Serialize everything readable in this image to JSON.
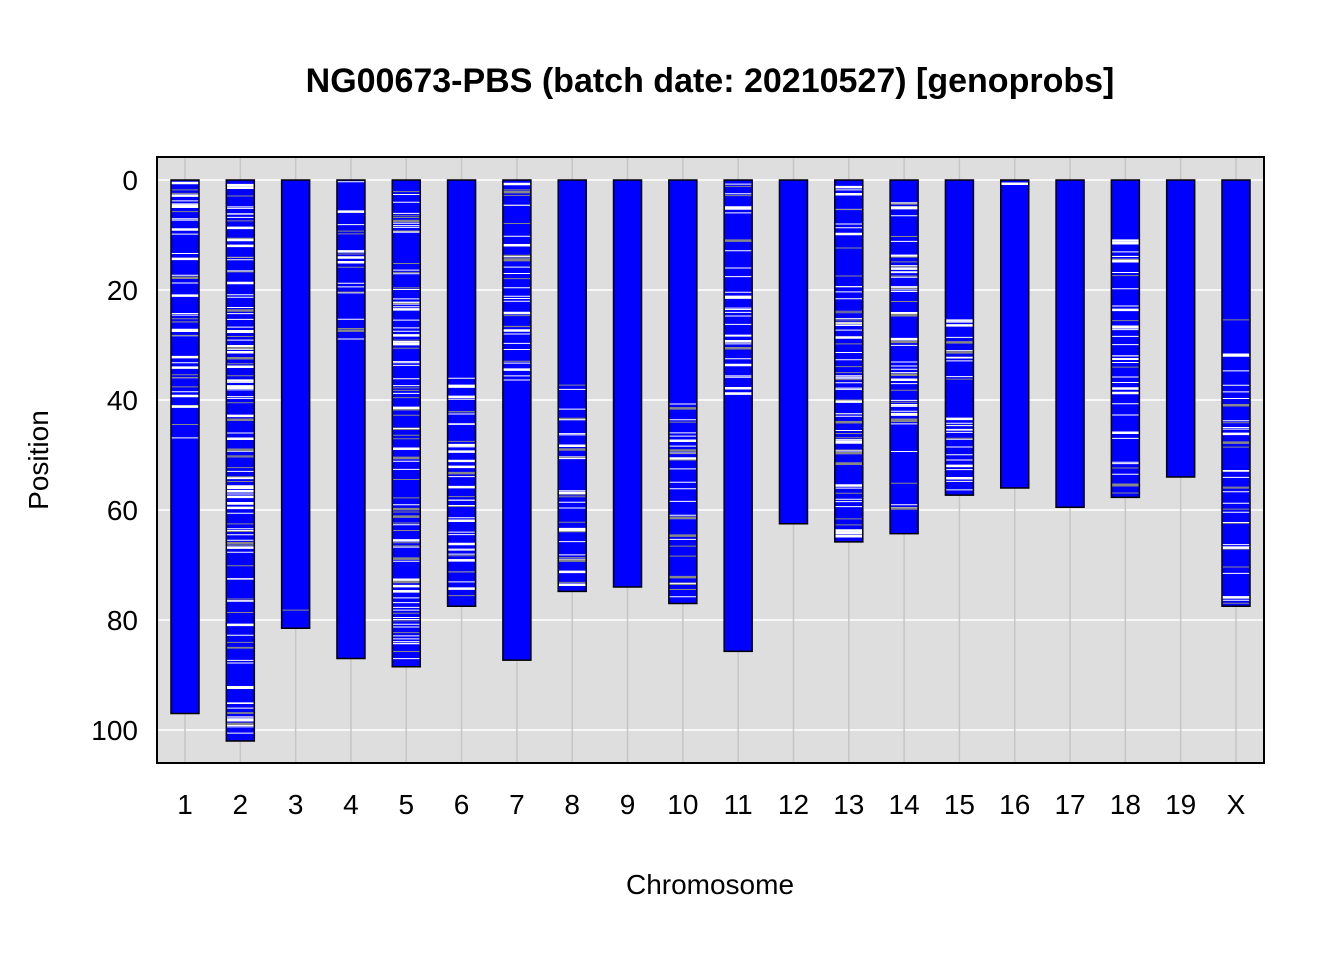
{
  "chart_data": {
    "type": "genotype-chromosome-plot",
    "title": "NG00673-PBS (batch date: 20210527) [genoprobs]",
    "xlabel": "Chromosome",
    "ylabel": "Position",
    "ylim": [
      106,
      -4
    ],
    "y_ticks": [
      "0",
      "20",
      "40",
      "60",
      "80",
      "100"
    ],
    "y_tick_values": [
      0,
      20,
      40,
      60,
      80,
      100
    ],
    "grid": true,
    "colors": {
      "chromosome_fill": "#0000ff",
      "het_marker": "#ffffff",
      "missing_marker": "#888888",
      "panel_background": "#dedede",
      "gridline": "#ffffff",
      "vertical_gridline": "#c6c6c6"
    },
    "chromosomes": [
      {
        "label": "1",
        "length": 97
      },
      {
        "label": "2",
        "length": 102
      },
      {
        "label": "3",
        "length": 81.5
      },
      {
        "label": "4",
        "length": 87
      },
      {
        "label": "5",
        "length": 88.5
      },
      {
        "label": "6",
        "length": 77.5
      },
      {
        "label": "7",
        "length": 87.3
      },
      {
        "label": "8",
        "length": 74.8
      },
      {
        "label": "9",
        "length": 74
      },
      {
        "label": "10",
        "length": 77
      },
      {
        "label": "11",
        "length": 85.7
      },
      {
        "label": "12",
        "length": 62.5
      },
      {
        "label": "13",
        "length": 65.8
      },
      {
        "label": "14",
        "length": 64.3
      },
      {
        "label": "15",
        "length": 57.3
      },
      {
        "label": "16",
        "length": 56
      },
      {
        "label": "17",
        "length": 59.5
      },
      {
        "label": "18",
        "length": 57.7
      },
      {
        "label": "19",
        "length": 54
      },
      {
        "label": "X",
        "length": 77.5
      }
    ],
    "marked_regions": [
      {
        "label": "1",
        "start": 0,
        "end": 47,
        "density": 0.8
      },
      {
        "label": "2",
        "start": 0,
        "end": 102,
        "density": 1.0
      },
      {
        "label": "3",
        "start": 76,
        "end": 81,
        "density": 0.2
      },
      {
        "label": "4",
        "start": 0,
        "end": 29,
        "density": 0.6
      },
      {
        "label": "5",
        "start": 0,
        "end": 88,
        "density": 1.0
      },
      {
        "label": "6",
        "start": 34,
        "end": 77,
        "density": 0.9
      },
      {
        "label": "7",
        "start": 0,
        "end": 37,
        "density": 0.8
      },
      {
        "label": "8",
        "start": 35,
        "end": 74,
        "density": 0.8
      },
      {
        "label": "10",
        "start": 40,
        "end": 76,
        "density": 0.8
      },
      {
        "label": "11",
        "start": 0,
        "end": 39,
        "density": 0.8
      },
      {
        "label": "13",
        "start": 0,
        "end": 65,
        "density": 1.0
      },
      {
        "label": "14",
        "start": 4,
        "end": 62,
        "density": 0.9
      },
      {
        "label": "15",
        "start": 23,
        "end": 57,
        "density": 0.9
      },
      {
        "label": "16",
        "start": 0,
        "end": 2,
        "density": 0.5
      },
      {
        "label": "18",
        "start": 9,
        "end": 57,
        "density": 0.8
      },
      {
        "label": "X",
        "start": 24,
        "end": 77,
        "density": 0.6
      }
    ]
  }
}
